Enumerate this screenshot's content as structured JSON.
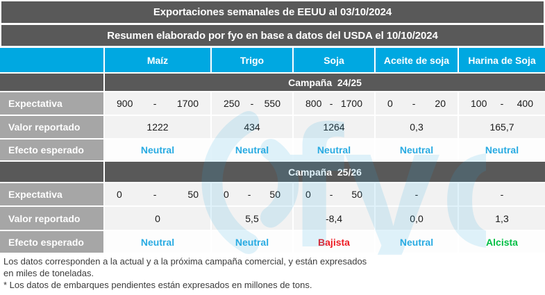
{
  "title1": "Exportaciones semanales de EEUU al 03/10/2024",
  "title2": "Resumen elaborado por fyo en base a datos del USDA el 10/10/2024",
  "columns": [
    {
      "label": "Maíz",
      "slug": "maiz"
    },
    {
      "label": "Trigo",
      "slug": "trigo"
    },
    {
      "label": "Soja",
      "slug": "soja"
    },
    {
      "label": "Aceite de soja",
      "slug": "aceite-de-soja"
    },
    {
      "label": "Harina de Soja",
      "slug": "harina-de-soja"
    }
  ],
  "row_labels": {
    "expectativa": "Expectativa",
    "valor": "Valor reportado",
    "efecto": "Efecto esperado"
  },
  "sections": [
    {
      "slug": "24-25",
      "campaign_label": "Campaña  24/25",
      "expectativa": [
        {
          "min": "900",
          "sep": "-",
          "max": "1700"
        },
        {
          "min": "250",
          "sep": "-",
          "max": "550"
        },
        {
          "min": "800",
          "sep": "-",
          "max": "1700"
        },
        {
          "min": "0",
          "sep": "-",
          "max": "20"
        },
        {
          "min": "100",
          "sep": "-",
          "max": "400"
        }
      ],
      "valor": [
        "1222",
        "434",
        "1264",
        "0,3",
        "165,7"
      ],
      "efecto": [
        {
          "label": "Neutral",
          "tone": "neutral"
        },
        {
          "label": "Neutral",
          "tone": "neutral"
        },
        {
          "label": "Neutral",
          "tone": "neutral"
        },
        {
          "label": "Neutral",
          "tone": "neutral"
        },
        {
          "label": "Neutral",
          "tone": "neutral"
        }
      ]
    },
    {
      "slug": "25-26",
      "campaign_label": "Campaña  25/26",
      "expectativa": [
        {
          "min": "0",
          "sep": "-",
          "max": "50"
        },
        {
          "min": "0",
          "sep": "-",
          "max": "50"
        },
        {
          "min": "0",
          "sep": "-",
          "max": "50"
        },
        {
          "only": "-"
        },
        {
          "only": "-"
        }
      ],
      "valor": [
        "0",
        "5,5",
        "-8,4",
        "0,0",
        "1,3"
      ],
      "efecto": [
        {
          "label": "Neutral",
          "tone": "neutral"
        },
        {
          "label": "Neutral",
          "tone": "neutral"
        },
        {
          "label": "Bajista",
          "tone": "bajista"
        },
        {
          "label": "Neutral",
          "tone": "neutral"
        },
        {
          "label": "Alcista",
          "tone": "alcista"
        }
      ]
    }
  ],
  "footnotes": [
    "Los datos corresponden a la actual y a la próxima campaña comercial, y están expresados",
    "en miles de toneladas.",
    "* Los datos de embarques pendientes están expresados en millones de tons."
  ],
  "watermark_text": "fyo",
  "colors": {
    "neutral": "#29ABE2",
    "bajista": "#ED1C24",
    "alcista": "#00BF45",
    "header_bar": "#595959",
    "column_header": "#00A8E1",
    "row_label": "#A6A6A6",
    "cell_bg": "#F2F2F2",
    "watermark": "#29ABE2"
  },
  "chart_data": {
    "type": "table",
    "title": "Exportaciones semanales de EEUU al 03/10/2024",
    "subtitle": "Resumen elaborado por fyo en base a datos del USDA el 10/10/2024",
    "columns": [
      "Maíz",
      "Trigo",
      "Soja",
      "Aceite de soja",
      "Harina de Soja"
    ],
    "sections": [
      {
        "campaign": "Campaña 24/25",
        "rows": [
          {
            "label": "Expectativa",
            "values": [
              "900 - 1700",
              "250 - 550",
              "800 - 1700",
              "0 - 20",
              "100 - 400"
            ]
          },
          {
            "label": "Valor reportado",
            "values": [
              "1222",
              "434",
              "1264",
              "0,3",
              "165,7"
            ]
          },
          {
            "label": "Efecto esperado",
            "values": [
              "Neutral",
              "Neutral",
              "Neutral",
              "Neutral",
              "Neutral"
            ]
          }
        ]
      },
      {
        "campaign": "Campaña 25/26",
        "rows": [
          {
            "label": "Expectativa",
            "values": [
              "0 - 50",
              "0 - 50",
              "0 - 50",
              "-",
              "-"
            ]
          },
          {
            "label": "Valor reportado",
            "values": [
              "0",
              "5,5",
              "-8,4",
              "0,0",
              "1,3"
            ]
          },
          {
            "label": "Efecto esperado",
            "values": [
              "Neutral",
              "Neutral",
              "Bajista",
              "Neutral",
              "Alcista"
            ]
          }
        ]
      }
    ],
    "units_note": "miles de toneladas (embarques pendientes en millones de tons)"
  }
}
